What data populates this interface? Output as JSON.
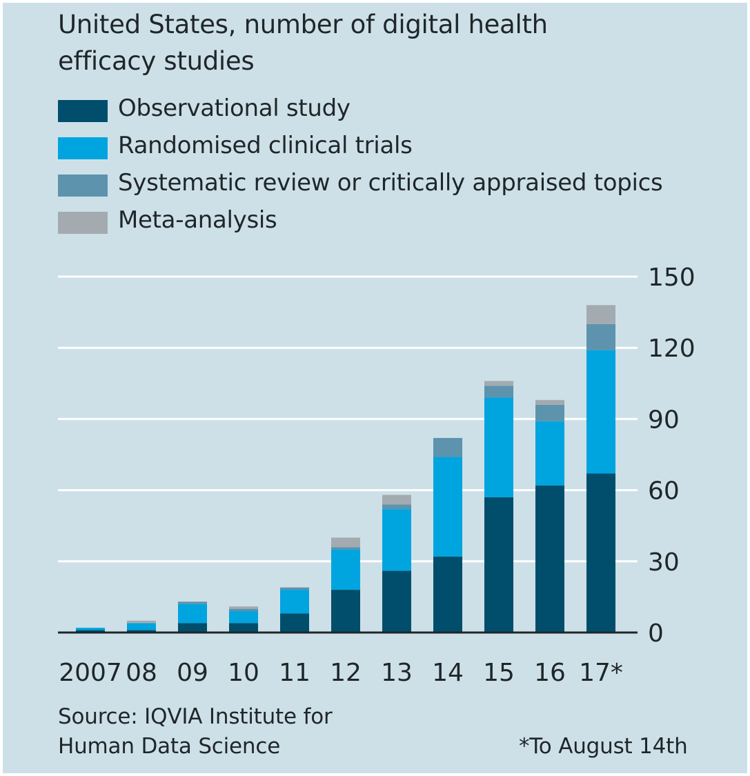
{
  "chart_data": {
    "type": "bar",
    "stacked": true,
    "title": "United States, number of digital health efficacy studies",
    "title_lines": [
      "United States, number of digital health",
      "efficacy studies"
    ],
    "categories": [
      "2007",
      "08",
      "09",
      "10",
      "11",
      "12",
      "13",
      "14",
      "15",
      "16",
      "17*"
    ],
    "series": [
      {
        "name": "Observational study",
        "color": "#004e6b",
        "values": [
          1,
          1,
          4,
          4,
          8,
          18,
          26,
          32,
          57,
          62,
          67
        ]
      },
      {
        "name": "Randomised clinical trials",
        "color": "#00a4df",
        "values": [
          1,
          3,
          8,
          5,
          10,
          17,
          26,
          42,
          42,
          27,
          52
        ]
      },
      {
        "name": "Systematic review or critically appraised topics",
        "color": "#5d93ad",
        "values": [
          0,
          0,
          1,
          1,
          1,
          1,
          2,
          8,
          5,
          7,
          11
        ]
      },
      {
        "name": "Meta-analysis",
        "color": "#a3abb0",
        "values": [
          0,
          1,
          0,
          1,
          0,
          4,
          4,
          0,
          2,
          2,
          8
        ]
      }
    ],
    "ylim": [
      0,
      150
    ],
    "yticks": [
      0,
      30,
      60,
      90,
      120,
      150
    ],
    "ytick_labels": [
      "0",
      "30",
      "60",
      "90",
      "120",
      "150"
    ],
    "y_axis_side": "right",
    "grid": true,
    "xlabel": "",
    "ylabel": "",
    "legend_position": "top-left"
  },
  "footer": {
    "source_line1": "Source: IQVIA Institute for",
    "source_line2": "Human Data Science",
    "note": "*To August 14th"
  }
}
